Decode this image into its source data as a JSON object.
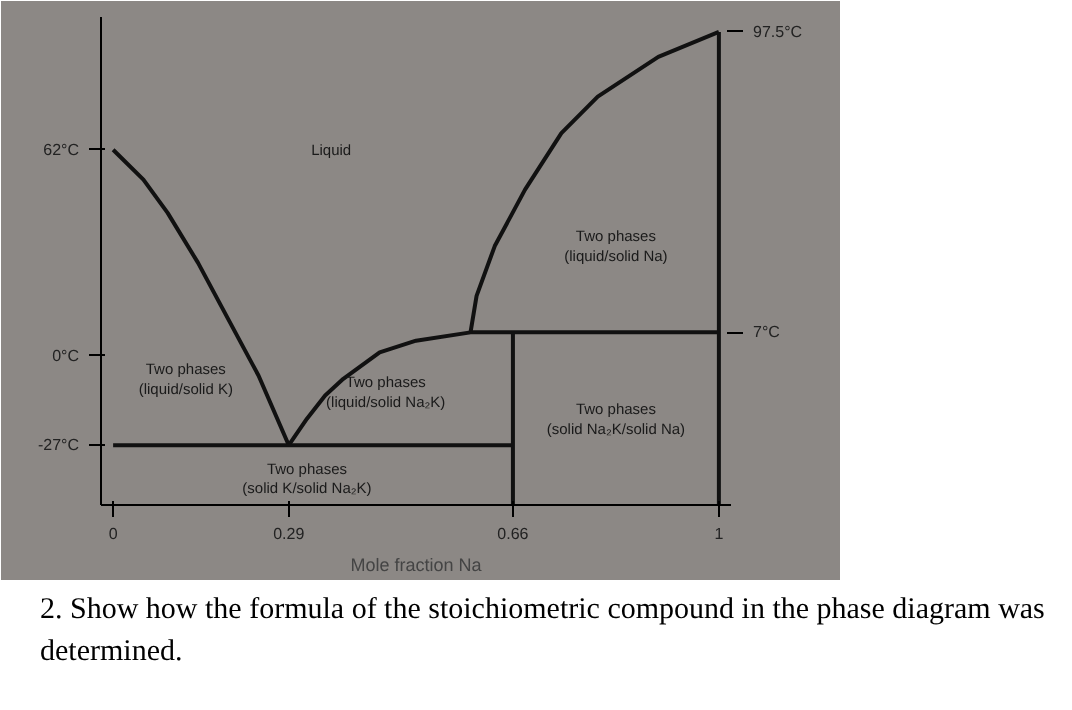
{
  "chart_data": {
    "type": "line",
    "xlabel": "Mole fraction Na",
    "xlim": [
      -0.02,
      1.02
    ],
    "ylim": [
      -45,
      102
    ],
    "xticks": [
      0,
      0.29,
      0.66,
      1
    ],
    "yticks": [
      {
        "value": 62,
        "label": "62°C"
      },
      {
        "value": 0,
        "label": "0°C"
      },
      {
        "value": -27,
        "label": "-27°C"
      }
    ],
    "y2lim": [
      -45,
      102
    ],
    "y2ticks": [
      {
        "value": 97.5,
        "label": "97.5°C"
      },
      {
        "value": 7,
        "label": "7°C"
      }
    ],
    "grid": false,
    "marker": "none",
    "line_style": "solid",
    "series": [
      {
        "color": "#111111",
        "x": [
          0,
          0.05,
          0.09,
          0.14,
          0.19,
          0.24,
          0.29
        ],
        "values": [
          62,
          53,
          43,
          28,
          11,
          -6,
          -27
        ]
      },
      {
        "color": "#111111",
        "x": [
          0.29,
          0.32,
          0.35,
          0.38,
          0.44,
          0.5,
          0.59,
          1
        ],
        "values": [
          -27,
          -19,
          -12,
          -7,
          1,
          4.5,
          7,
          7
        ]
      },
      {
        "color": "#111111",
        "x": [
          0.59,
          0.6,
          0.63,
          0.68,
          0.74,
          0.8,
          0.9,
          1
        ],
        "values": [
          7,
          18,
          33,
          50,
          67,
          78,
          90,
          97.5
        ]
      },
      {
        "color": "#111111",
        "x": [
          0,
          0.66
        ],
        "values": [
          -27,
          -27
        ]
      },
      {
        "color": "#111111",
        "x": [
          0.66,
          0.66
        ],
        "values": [
          7,
          -45
        ]
      },
      {
        "color": "#111111",
        "x": [
          1,
          1
        ],
        "values": [
          97.5,
          -45
        ]
      }
    ],
    "annotations": [
      "Liquid",
      "Two phases\n(liquid/solid Na)",
      "Two phases\n(liquid/solid K)",
      "Two phases\n(liquid/solid Na₂K)",
      "Two phases\n(solid Na₂K/solid Na)",
      "Two phases\n(solid K/solid Na₂K)",
      "2. Show how the formula of the stoichiometric compound in the phase diagram was determined."
    ]
  }
}
